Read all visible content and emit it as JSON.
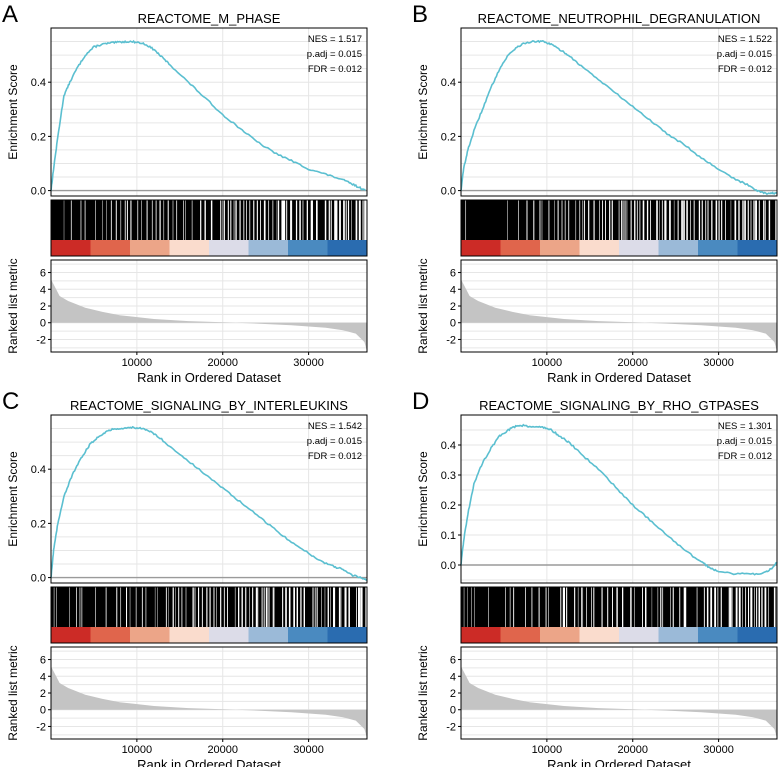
{
  "figure": {
    "shared": {
      "xlabel": "Rank in Ordered Dataset",
      "ylabel_es": "Enrichment Score",
      "ylabel_rank": "Ranked list metric"
    },
    "colors": {
      "curve": "#5bbfd0",
      "frame": "#000000",
      "grid": "#e6e6e6",
      "zero_line": "#9a9a9a",
      "metric_fill": "#c4c4c4"
    }
  },
  "chart_data": [
    {
      "type": "line",
      "panel_label": "A",
      "title": "REACTOME_M_PHASE",
      "stats": [
        "NES = 1.517",
        "p.adj = 0.015",
        "FDR = 0.012"
      ],
      "xlabel": "Rank in Ordered Dataset",
      "ylabel": "Enrichment Score",
      "xlim": [
        0,
        36800
      ],
      "ylim": [
        -0.02,
        0.6
      ],
      "yticks": [
        0.0,
        0.2,
        0.4
      ],
      "ytick_labels": [
        "0.0",
        "0.2",
        "0.4"
      ],
      "x": [
        0,
        300,
        800,
        1500,
        2200,
        3000,
        4000,
        5000,
        6000,
        7000,
        8000,
        9000,
        10000,
        11000,
        12000,
        13000,
        14000,
        16000,
        18000,
        20000,
        22000,
        24000,
        26000,
        28000,
        30000,
        32000,
        34000,
        35000,
        36000,
        36600
      ],
      "y": [
        0.0,
        0.08,
        0.2,
        0.35,
        0.4,
        0.45,
        0.5,
        0.53,
        0.54,
        0.545,
        0.548,
        0.55,
        0.548,
        0.54,
        0.52,
        0.49,
        0.46,
        0.4,
        0.34,
        0.28,
        0.23,
        0.18,
        0.14,
        0.11,
        0.08,
        0.06,
        0.04,
        0.025,
        0.01,
        0.0
      ],
      "hits_density": "dense",
      "heatmap_colors": [
        "#cc2b26",
        "#e0654c",
        "#eca588",
        "#fadccd",
        "#dcdce8",
        "#9bbad8",
        "#4a8ac0",
        "#2a6cb0"
      ],
      "rank_metric": {
        "x": [
          0,
          1000,
          2000,
          4000,
          6000,
          8000,
          12000,
          16000,
          20000,
          24000,
          28000,
          32000,
          34000,
          35500,
          36500,
          36800
        ],
        "y": [
          5.2,
          3.2,
          2.6,
          1.8,
          1.3,
          0.9,
          0.45,
          0.2,
          0.05,
          -0.1,
          -0.3,
          -0.6,
          -0.9,
          -1.3,
          -2.3,
          -3.4
        ],
        "ylim": [
          -3.5,
          7.5
        ],
        "yticks": [
          -2,
          0,
          2,
          4,
          6
        ],
        "ytick_labels": [
          "-2",
          "0",
          "2",
          "4",
          "6"
        ]
      },
      "xticks": [
        10000,
        20000,
        30000
      ],
      "xtick_labels": [
        "10000",
        "20000",
        "30000"
      ]
    },
    {
      "type": "line",
      "panel_label": "B",
      "title": "REACTOME_NEUTROPHIL_DEGRANULATION",
      "stats": [
        "NES = 1.522",
        "p.adj = 0.015",
        "FDR = 0.012"
      ],
      "xlabel": "Rank in Ordered Dataset",
      "ylabel": "Enrichment Score",
      "xlim": [
        0,
        36800
      ],
      "ylim": [
        -0.02,
        0.6
      ],
      "yticks": [
        0.0,
        0.2,
        0.4
      ],
      "ytick_labels": [
        "0.0",
        "0.2",
        "0.4"
      ],
      "x": [
        0,
        300,
        800,
        1500,
        2500,
        3500,
        4500,
        5500,
        6500,
        7500,
        8500,
        9500,
        10500,
        11500,
        12500,
        14000,
        16000,
        18000,
        20000,
        22000,
        24000,
        26000,
        28000,
        30000,
        32000,
        33500,
        34500,
        35500,
        36300,
        36800
      ],
      "y": [
        0.0,
        0.08,
        0.15,
        0.22,
        0.3,
        0.38,
        0.45,
        0.5,
        0.53,
        0.545,
        0.55,
        0.55,
        0.54,
        0.52,
        0.5,
        0.46,
        0.41,
        0.36,
        0.31,
        0.26,
        0.21,
        0.17,
        0.12,
        0.08,
        0.04,
        0.02,
        0.0,
        -0.01,
        -0.01,
        -0.01
      ],
      "hits_density": "dense",
      "heatmap_colors": [
        "#cc2b26",
        "#e0654c",
        "#eca588",
        "#fadccd",
        "#dcdce8",
        "#9bbad8",
        "#4a8ac0",
        "#2a6cb0"
      ],
      "rank_metric": {
        "x": [
          0,
          1000,
          2000,
          4000,
          6000,
          8000,
          12000,
          16000,
          20000,
          24000,
          28000,
          32000,
          34000,
          35500,
          36500,
          36800
        ],
        "y": [
          5.2,
          3.2,
          2.6,
          1.8,
          1.3,
          0.9,
          0.45,
          0.2,
          0.05,
          -0.1,
          -0.3,
          -0.6,
          -0.9,
          -1.3,
          -2.3,
          -3.4
        ],
        "ylim": [
          -3.5,
          7.5
        ],
        "yticks": [
          -2,
          0,
          2,
          4,
          6
        ],
        "ytick_labels": [
          "-2",
          "0",
          "2",
          "4",
          "6"
        ]
      },
      "xticks": [
        10000,
        20000,
        30000
      ],
      "xtick_labels": [
        "10000",
        "20000",
        "30000"
      ]
    },
    {
      "type": "line",
      "panel_label": "C",
      "title": "REACTOME_SIGNALING_BY_INTERLEUKINS",
      "stats": [
        "NES = 1.542",
        "p.adj = 0.015",
        "FDR = 0.012"
      ],
      "xlabel": "Rank in Ordered Dataset",
      "ylabel": "Enrichment Score",
      "xlim": [
        0,
        36800
      ],
      "ylim": [
        -0.02,
        0.6
      ],
      "yticks": [
        0.0,
        0.2,
        0.4
      ],
      "ytick_labels": [
        "0.0",
        "0.2",
        "0.4"
      ],
      "x": [
        0,
        300,
        800,
        1500,
        2500,
        3500,
        4500,
        5500,
        6500,
        7500,
        8500,
        9500,
        10500,
        11500,
        12500,
        14000,
        16000,
        18000,
        20000,
        22000,
        24000,
        26000,
        28000,
        30000,
        31500,
        33000,
        34000,
        35000,
        36000,
        36800
      ],
      "y": [
        0.0,
        0.1,
        0.2,
        0.3,
        0.38,
        0.44,
        0.49,
        0.52,
        0.54,
        0.55,
        0.55,
        0.555,
        0.55,
        0.54,
        0.52,
        0.48,
        0.43,
        0.38,
        0.33,
        0.28,
        0.23,
        0.18,
        0.13,
        0.09,
        0.06,
        0.04,
        0.03,
        0.01,
        0.0,
        -0.01
      ],
      "hits_density": "dense",
      "heatmap_colors": [
        "#cc2b26",
        "#e0654c",
        "#eca588",
        "#fadccd",
        "#dcdce8",
        "#9bbad8",
        "#4a8ac0",
        "#2a6cb0"
      ],
      "rank_metric": {
        "x": [
          0,
          1000,
          2000,
          4000,
          6000,
          8000,
          12000,
          16000,
          20000,
          24000,
          28000,
          32000,
          34000,
          35500,
          36500,
          36800
        ],
        "y": [
          5.2,
          3.2,
          2.6,
          1.8,
          1.3,
          0.9,
          0.45,
          0.2,
          0.05,
          -0.1,
          -0.3,
          -0.6,
          -0.9,
          -1.3,
          -2.3,
          -3.4
        ],
        "ylim": [
          -3.5,
          7.5
        ],
        "yticks": [
          -2,
          0,
          2,
          4,
          6
        ],
        "ytick_labels": [
          "-2",
          "0",
          "2",
          "4",
          "6"
        ]
      },
      "xticks": [
        10000,
        20000,
        30000
      ],
      "xtick_labels": [
        "10000",
        "20000",
        "30000"
      ]
    },
    {
      "type": "line",
      "panel_label": "D",
      "title": "REACTOME_SIGNALING_BY_RHO_GTPASES",
      "stats": [
        "NES = 1.301",
        "p.adj = 0.015",
        "FDR = 0.012"
      ],
      "xlabel": "Rank in Ordered Dataset",
      "ylabel": "Enrichment Score",
      "xlim": [
        0,
        36800
      ],
      "ylim": [
        -0.06,
        0.5
      ],
      "yticks": [
        0.0,
        0.1,
        0.2,
        0.3,
        0.4
      ],
      "ytick_labels": [
        "0.0",
        "0.1",
        "0.2",
        "0.3",
        "0.4"
      ],
      "x": [
        0,
        300,
        800,
        1500,
        2500,
        3500,
        4500,
        5500,
        6500,
        7500,
        8500,
        9500,
        10500,
        11500,
        12500,
        14000,
        16000,
        18000,
        20000,
        22000,
        24000,
        26000,
        28000,
        29000,
        30000,
        32000,
        34000,
        35500,
        36300,
        36800
      ],
      "y": [
        0.0,
        0.08,
        0.17,
        0.27,
        0.34,
        0.39,
        0.43,
        0.45,
        0.465,
        0.465,
        0.46,
        0.46,
        0.45,
        0.43,
        0.41,
        0.37,
        0.32,
        0.26,
        0.2,
        0.15,
        0.1,
        0.05,
        0.01,
        -0.01,
        -0.02,
        -0.03,
        -0.03,
        -0.025,
        -0.01,
        0.01
      ],
      "hits_density": "dense",
      "heatmap_colors": [
        "#cc2b26",
        "#e0654c",
        "#eca588",
        "#fadccd",
        "#dcdce8",
        "#9bbad8",
        "#4a8ac0",
        "#2a6cb0"
      ],
      "rank_metric": {
        "x": [
          0,
          1000,
          2000,
          4000,
          6000,
          8000,
          12000,
          16000,
          20000,
          24000,
          28000,
          32000,
          34000,
          35500,
          36500,
          36800
        ],
        "y": [
          5.2,
          3.2,
          2.6,
          1.8,
          1.3,
          0.9,
          0.45,
          0.2,
          0.05,
          -0.1,
          -0.3,
          -0.6,
          -0.9,
          -1.3,
          -2.3,
          -3.4
        ],
        "ylim": [
          -3.5,
          7.5
        ],
        "yticks": [
          -2,
          0,
          2,
          4,
          6
        ],
        "ytick_labels": [
          "-2",
          "0",
          "2",
          "4",
          "6"
        ]
      },
      "xticks": [
        10000,
        20000,
        30000
      ],
      "xtick_labels": [
        "10000",
        "20000",
        "30000"
      ]
    }
  ]
}
